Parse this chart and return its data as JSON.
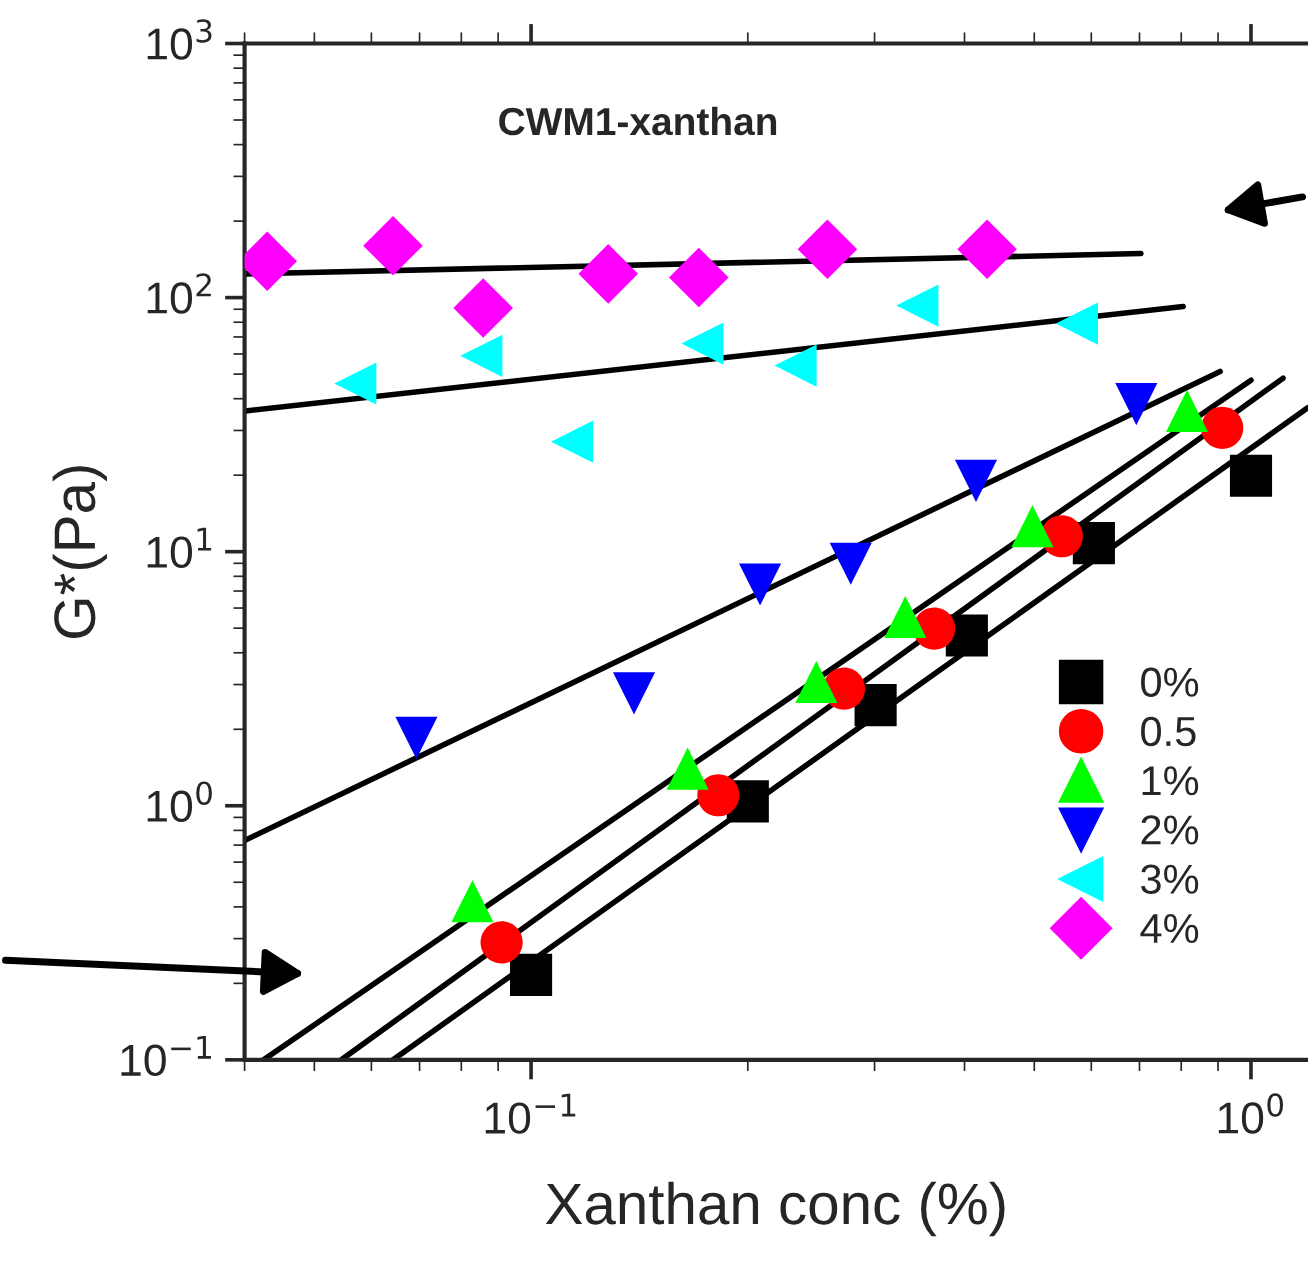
{
  "chart_data": {
    "type": "scatter",
    "title": "CWM1-xanthan",
    "xlabel": "Xanthan conc (%)",
    "ylabel": "G*(Pa)",
    "log": "xy",
    "xlim": [
      0.04,
      1.2
    ],
    "ylim": [
      0.1,
      1000
    ],
    "xticks": [
      {
        "value": 0.1,
        "label": "10$^{−1}$"
      },
      {
        "value": 1,
        "label": "10$^{0}$"
      }
    ],
    "yticks": [
      {
        "value": 0.1,
        "label": "10$^{−1}$"
      },
      {
        "value": 1,
        "label": "10$^{0}$"
      },
      {
        "value": 10,
        "label": "10$^{1}$"
      },
      {
        "value": 100,
        "label": "10$^{2}$"
      },
      {
        "value": 1000,
        "label": "10$^{3}$"
      }
    ],
    "grid": false,
    "legend": "lower right",
    "series": [
      {
        "name": "0%",
        "color": "#000000",
        "marker": "square",
        "x": [
          0.1,
          0.2,
          0.301,
          0.403,
          0.605,
          1.0
        ],
        "values": [
          0.216,
          1.04,
          2.49,
          4.68,
          10.8,
          19.9
        ]
      },
      {
        "name": "0.5",
        "color": "#ff0000",
        "marker": "circle",
        "x": [
          0.091,
          0.182,
          0.272,
          0.363,
          0.546,
          0.912
        ],
        "values": [
          0.29,
          1.1,
          2.89,
          4.98,
          11.5,
          30.7
        ]
      },
      {
        "name": "1%",
        "color": "#00ff00",
        "marker": "triangle",
        "x": [
          0.0829,
          0.165,
          0.249,
          0.331,
          0.497,
          0.815
        ],
        "values": [
          0.421,
          1.4,
          3.07,
          5.53,
          12.6,
          35.8
        ]
      },
      {
        "name": "2%",
        "color": "#0000ff",
        "marker": "triangle-down",
        "x": [
          0.0693,
          0.139,
          0.208,
          0.278,
          0.415,
          0.693
        ],
        "values": [
          1.85,
          2.77,
          7.43,
          8.96,
          19.0,
          38.1
        ]
      },
      {
        "name": "3%",
        "color": "#00ffff",
        "marker": "triangle-left",
        "x": [
          0.057,
          0.0853,
          0.114,
          0.173,
          0.233,
          0.344,
          0.573
        ],
        "values": [
          45.9,
          59,
          27.1,
          65.9,
          54,
          93,
          79
        ]
      },
      {
        "name": "4%",
        "color": "#ff00ff",
        "marker": "diamond",
        "x": [
          0.043,
          0.0643,
          0.0858,
          0.128,
          0.171,
          0.258,
          0.43
        ],
        "values": [
          139,
          160,
          91,
          124,
          120,
          155,
          155
        ]
      },
      {
        "type": "line",
        "color": "#000000",
        "x": [
          0.0643,
          1.2
        ],
        "values": [
          0.1,
          36.9
        ]
      },
      {
        "type": "line",
        "color": "#000000",
        "x": [
          0.0545,
          1.108
        ],
        "values": [
          0.1,
          48.2
        ]
      },
      {
        "type": "line",
        "color": "#000000",
        "x": [
          0.0425,
          1.0
        ],
        "values": [
          0.1,
          47.3
        ]
      },
      {
        "type": "line",
        "color": "#000000",
        "x": [
          0.04,
          0.906
        ],
        "values": [
          0.73,
          51.2
        ]
      },
      {
        "type": "line",
        "color": "#000000",
        "x": [
          0.0401,
          0.805
        ],
        "values": [
          35.8,
          92.2
        ]
      },
      {
        "type": "line",
        "color": "#000000",
        "x": [
          0.0401,
          0.703
        ],
        "values": [
          124,
          149
        ]
      }
    ]
  }
}
